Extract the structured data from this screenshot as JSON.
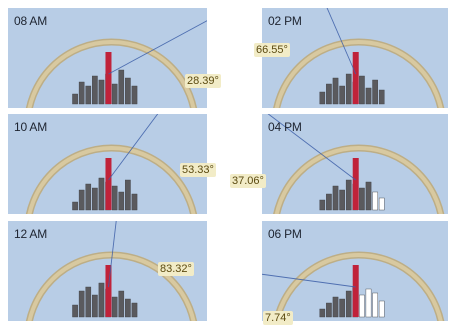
{
  "colors": {
    "panel_bg": "#b8cde6",
    "arc": "#d8c9a0",
    "arc_outline": "#bdae86",
    "sun_ray": "#3d5fa8",
    "bar_dark": "#5a5a5e",
    "bar_light": "#ffffff",
    "marker": "#c0223a",
    "label_bg": "#f2ecc7"
  },
  "panels": [
    {
      "time": "08 AM",
      "angle": "28.39°",
      "angle_value": 28.39,
      "ray_side": "right"
    },
    {
      "time": "02 PM",
      "angle": "66.55°",
      "angle_value": 66.55,
      "ray_side": "left"
    },
    {
      "time": "10 AM",
      "angle": "53.33°",
      "angle_value": 53.33,
      "ray_side": "right"
    },
    {
      "time": "04 PM",
      "angle": "37.06°",
      "angle_value": 37.06,
      "ray_side": "left"
    },
    {
      "time": "12 AM",
      "angle": "83.32°",
      "angle_value": 83.32,
      "ray_side": "right"
    },
    {
      "time": "06 PM",
      "angle": "7.74°",
      "angle_value": 7.74,
      "ray_side": "left"
    }
  ]
}
